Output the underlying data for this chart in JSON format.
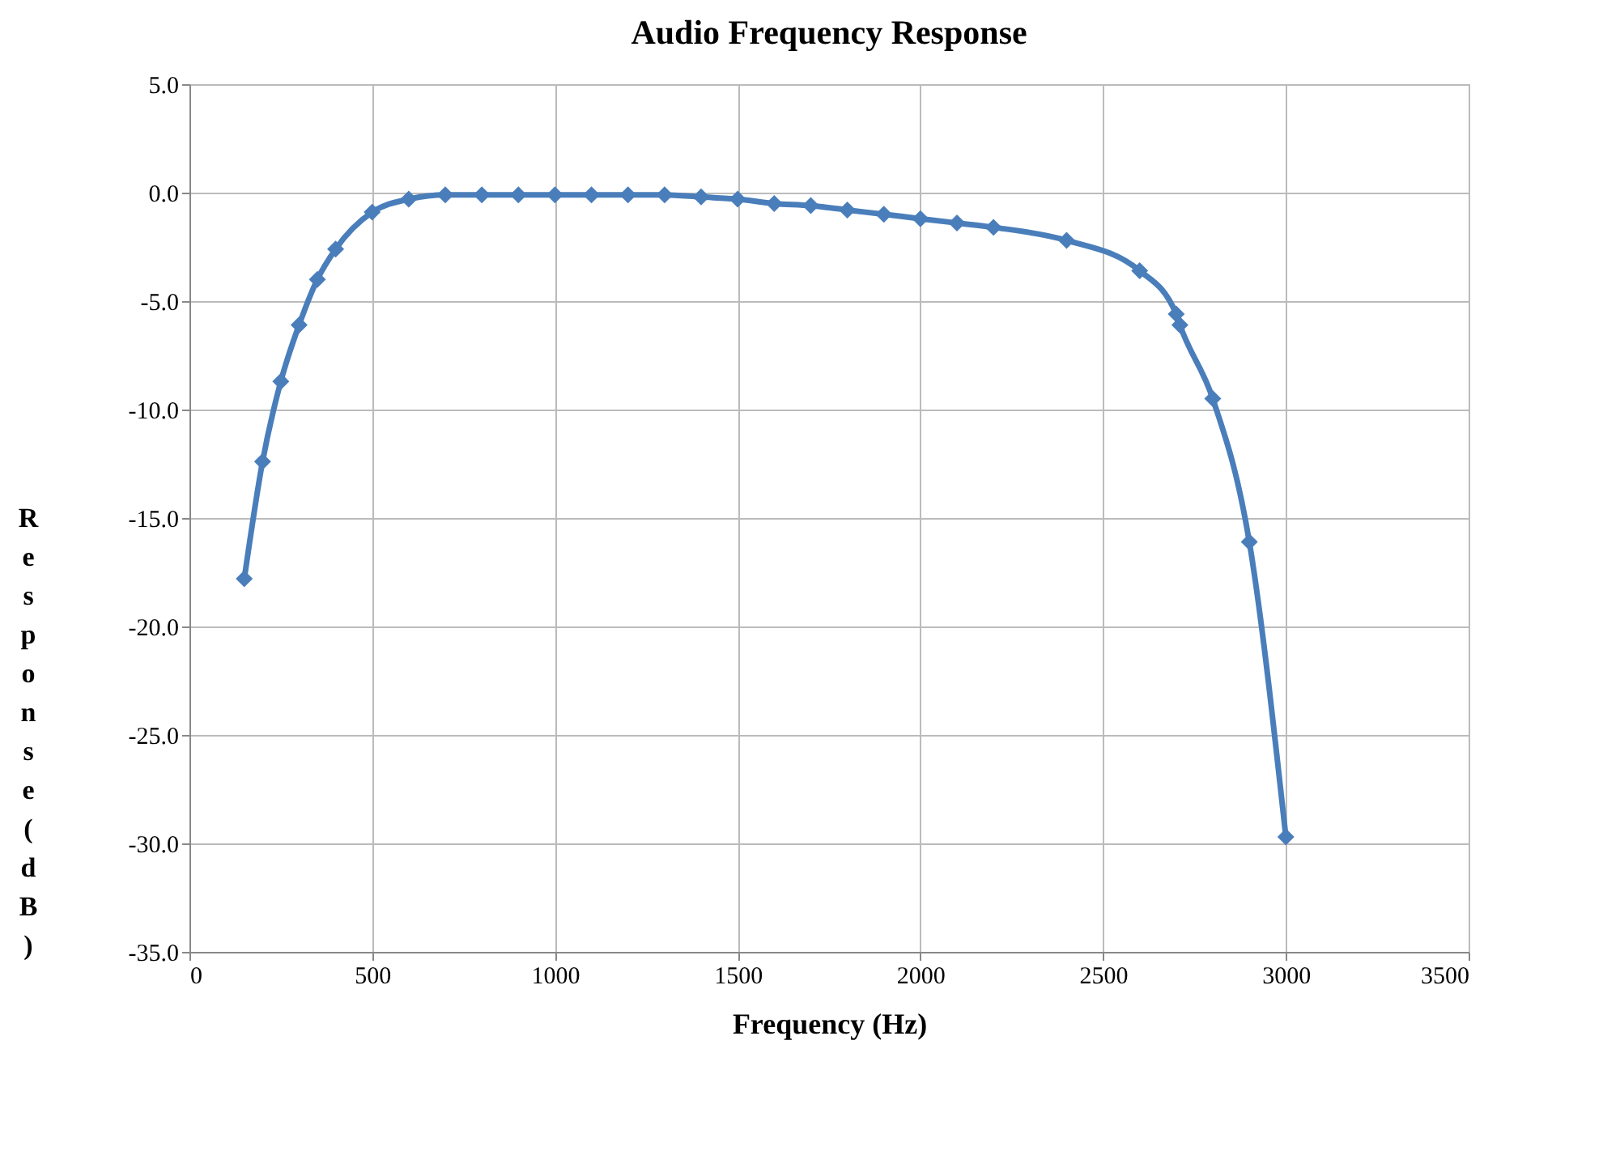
{
  "chart_data": {
    "type": "line",
    "title": "Audio Frequency Response",
    "xlabel": "Frequency (Hz)",
    "ylabel": "Response(dB)",
    "x": [
      150,
      200,
      250,
      300,
      350,
      400,
      500,
      600,
      700,
      800,
      900,
      1000,
      1100,
      1200,
      1300,
      1400,
      1500,
      1600,
      1700,
      1800,
      1900,
      2000,
      2100,
      2200,
      2400,
      2600,
      2700,
      2710,
      2800,
      2900,
      3000
    ],
    "series": [
      {
        "color": "#4a7ebb",
        "values": [
          -17.8,
          -12.4,
          -8.7,
          -6.1,
          -4.0,
          -2.6,
          -0.9,
          -0.3,
          -0.1,
          -0.1,
          -0.1,
          -0.1,
          -0.1,
          -0.1,
          -0.1,
          -0.2,
          -0.3,
          -0.5,
          -0.6,
          -0.8,
          -1.0,
          -1.2,
          -1.4,
          -1.6,
          -2.2,
          -3.6,
          -5.6,
          -6.1,
          -9.5,
          -16.1,
          -29.7
        ]
      }
    ],
    "xlim": [
      0,
      3500
    ],
    "xticks": [
      0,
      500,
      1000,
      1500,
      2000,
      2500,
      3000,
      3500
    ],
    "ylim": [
      -35,
      5
    ],
    "yticks": [
      {
        "value": -35,
        "label": "-35.0"
      },
      {
        "value": -30,
        "label": "-30.0"
      },
      {
        "value": -25,
        "label": "-25.0"
      },
      {
        "value": -20,
        "label": "-20.0"
      },
      {
        "value": -15,
        "label": "-15.0"
      },
      {
        "value": -10,
        "label": "-10.0"
      },
      {
        "value": -5,
        "label": "-5.0"
      },
      {
        "value": 0,
        "label": "0.0"
      },
      {
        "value": 5,
        "label": "5.0"
      }
    ],
    "grid": true,
    "marker": "diamond",
    "line_style": "solid"
  }
}
